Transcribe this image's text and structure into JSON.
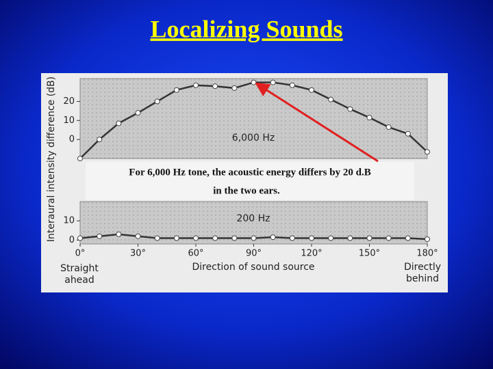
{
  "title": "Localizing Sounds",
  "annotation": [
    "For 6,000 Hz tone, the acoustic energy differs by 20 d.B",
    "in the two ears."
  ],
  "chart_data": [
    {
      "type": "line",
      "title": "6,000 Hz",
      "ylabel": "Interaural intensity difference (dB)",
      "x": [
        0,
        10,
        20,
        30,
        40,
        50,
        60,
        70,
        80,
        90,
        100,
        110,
        120,
        130,
        140,
        150,
        160,
        170,
        180
      ],
      "values": [
        -10,
        0,
        8.5,
        14,
        20,
        26,
        28.5,
        28,
        27,
        30,
        30,
        28.5,
        26,
        21,
        16,
        11.5,
        6.5,
        3,
        -6.5
      ],
      "xlim": [
        0,
        180
      ],
      "ylim": [
        -10,
        32
      ],
      "yticks": [
        0,
        10,
        20
      ],
      "color": "#333333",
      "grid": true
    },
    {
      "type": "line",
      "title": "200 Hz",
      "xlabel": "Direction of sound source",
      "left_note": "Straight ahead",
      "right_note": "Directly behind",
      "x": [
        0,
        10,
        20,
        30,
        40,
        50,
        60,
        70,
        80,
        90,
        100,
        110,
        120,
        130,
        140,
        150,
        160,
        170,
        180
      ],
      "values": [
        1,
        2,
        3,
        2,
        1,
        1,
        1,
        1,
        1,
        1,
        1.5,
        1,
        1,
        1,
        1,
        1,
        1,
        1,
        0.5
      ],
      "xlim": [
        0,
        180
      ],
      "ylim": [
        -2,
        20
      ],
      "yticks": [
        0,
        10
      ],
      "xticks": [
        {
          "value": 0,
          "label": "0°"
        },
        {
          "value": 30,
          "label": "30°"
        },
        {
          "value": 60,
          "label": "60°"
        },
        {
          "value": 90,
          "label": "90°"
        },
        {
          "value": 120,
          "label": "120°"
        },
        {
          "value": 150,
          "label": "150°"
        },
        {
          "value": 180,
          "label": "180°"
        }
      ],
      "color": "#333333",
      "grid": true
    }
  ]
}
